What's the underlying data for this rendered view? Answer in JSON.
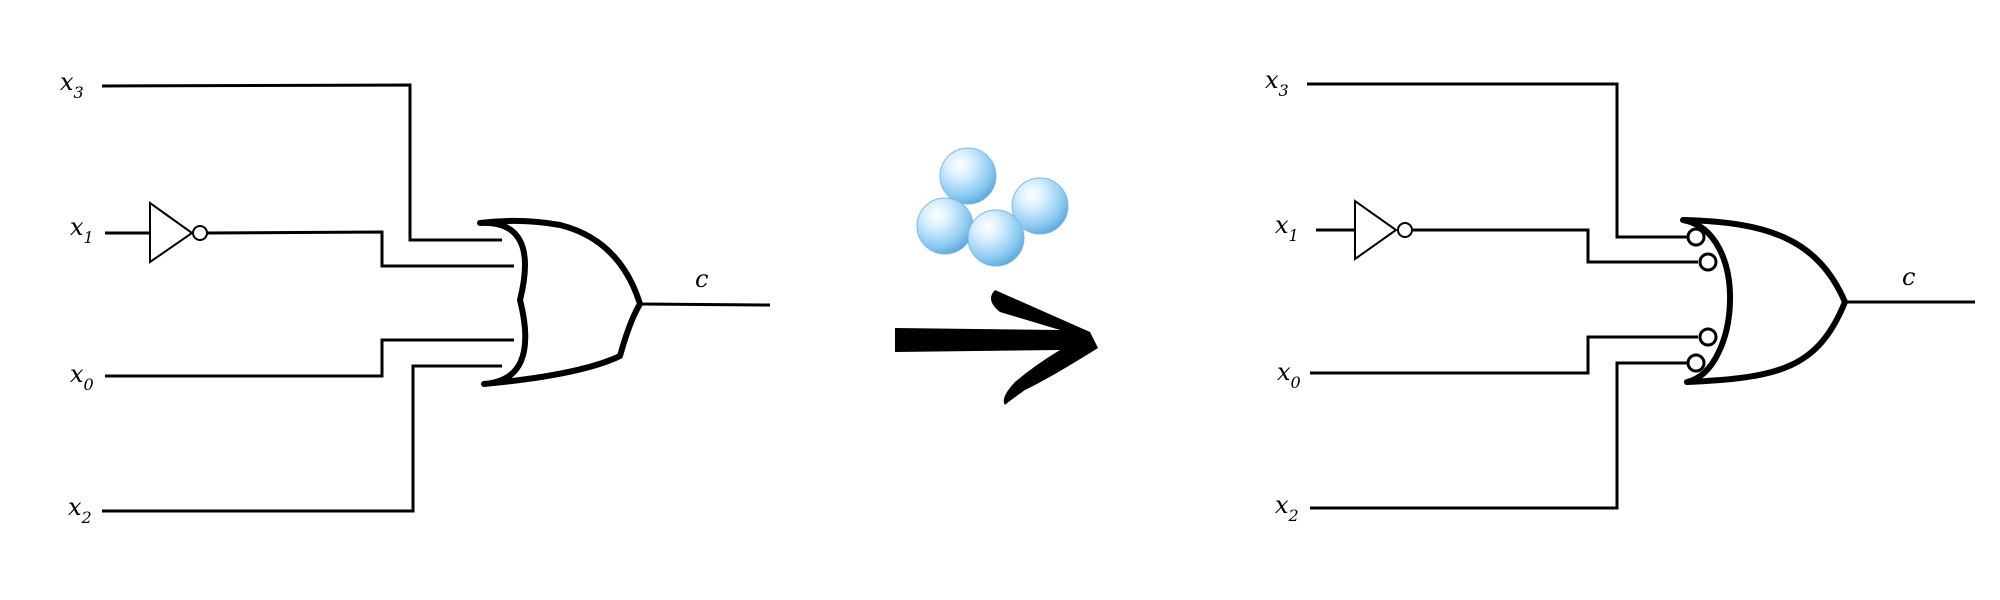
{
  "left_circuit": {
    "inputs": [
      {
        "name": "x",
        "sub": "3",
        "inverted": false
      },
      {
        "name": "x",
        "sub": "1",
        "inverted": true
      },
      {
        "name": "x",
        "sub": "0",
        "inverted": false
      },
      {
        "name": "x",
        "sub": "2",
        "inverted": false
      }
    ],
    "output": "c",
    "gate": "or",
    "gate_input_bubbles": false
  },
  "transform_arrow": {
    "decoration": "bubbles-icon",
    "bubble_color": "#8ccaf0"
  },
  "right_circuit": {
    "inputs": [
      {
        "name": "x",
        "sub": "3",
        "inverted": false
      },
      {
        "name": "x",
        "sub": "1",
        "inverted": true
      },
      {
        "name": "x",
        "sub": "0",
        "inverted": false
      },
      {
        "name": "x",
        "sub": "2",
        "inverted": false
      }
    ],
    "output": "c",
    "gate": "or",
    "gate_input_bubbles": true
  }
}
